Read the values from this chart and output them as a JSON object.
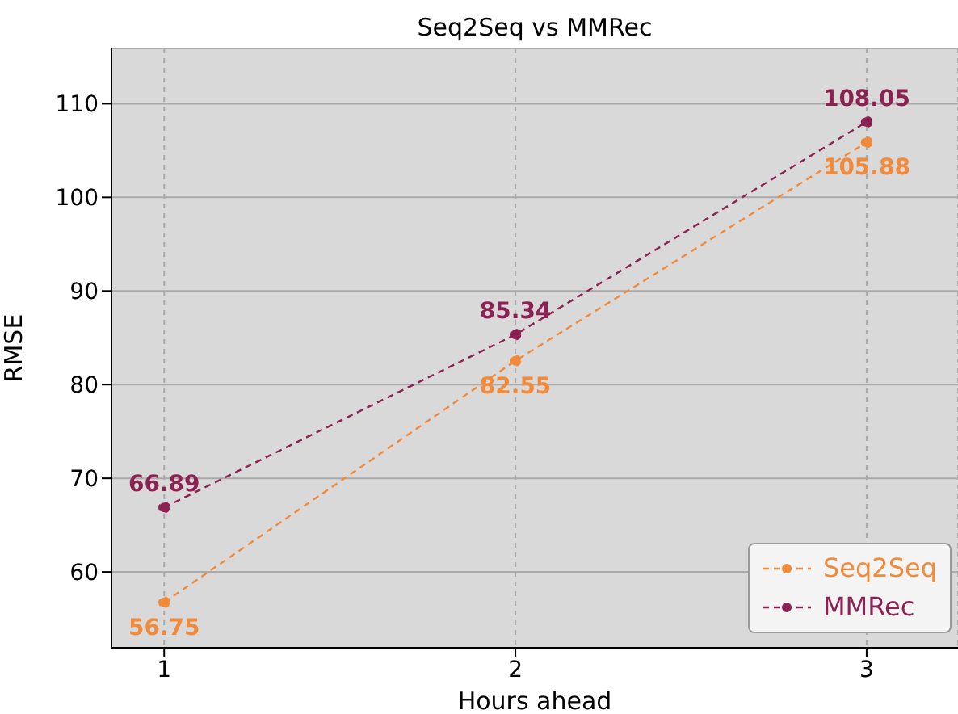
{
  "chart_data": {
    "type": "line",
    "title": "Seq2Seq vs MMRec",
    "xlabel": "Hours ahead",
    "ylabel": "RMSE",
    "x": [
      1,
      2,
      3
    ],
    "series": [
      {
        "name": "Seq2Seq",
        "color": "#f28a3a",
        "values": [
          56.75,
          82.55,
          105.88
        ]
      },
      {
        "name": "MMRec",
        "color": "#8b2252",
        "values": [
          66.89,
          85.34,
          108.05
        ]
      }
    ],
    "xlim": [
      0.85,
      3.26
    ],
    "xticks": [
      1,
      2,
      3
    ],
    "ylim": [
      51.9,
      115.9
    ],
    "yticks": [
      60,
      70,
      80,
      90,
      100,
      110
    ],
    "grid": true,
    "legend": "bottom right",
    "marker": "circle",
    "line_style": "dashed",
    "data_labels": true
  }
}
